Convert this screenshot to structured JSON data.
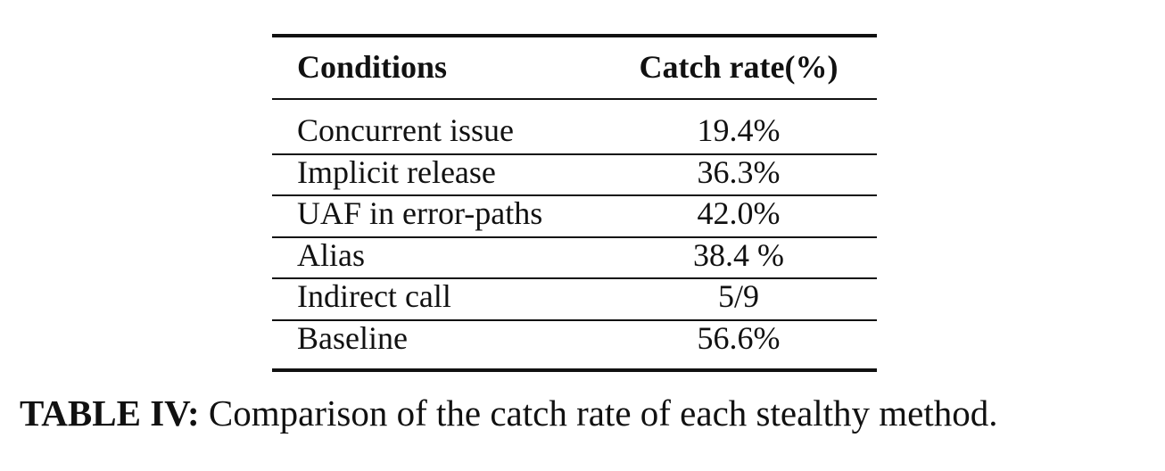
{
  "table": {
    "header": [
      "Conditions",
      "Catch rate(%)"
    ],
    "rows": [
      [
        "Concurrent issue",
        "19.4%"
      ],
      [
        "Implicit release",
        "36.3%"
      ],
      [
        "UAF in error-paths",
        "42.0%"
      ],
      [
        "Alias",
        "38.4 %"
      ],
      [
        "Indirect call",
        "5/9"
      ],
      [
        "Baseline",
        "56.6%"
      ]
    ]
  },
  "caption": {
    "label": "TABLE IV:",
    "text": "Comparison of the catch rate of each stealthy method."
  }
}
